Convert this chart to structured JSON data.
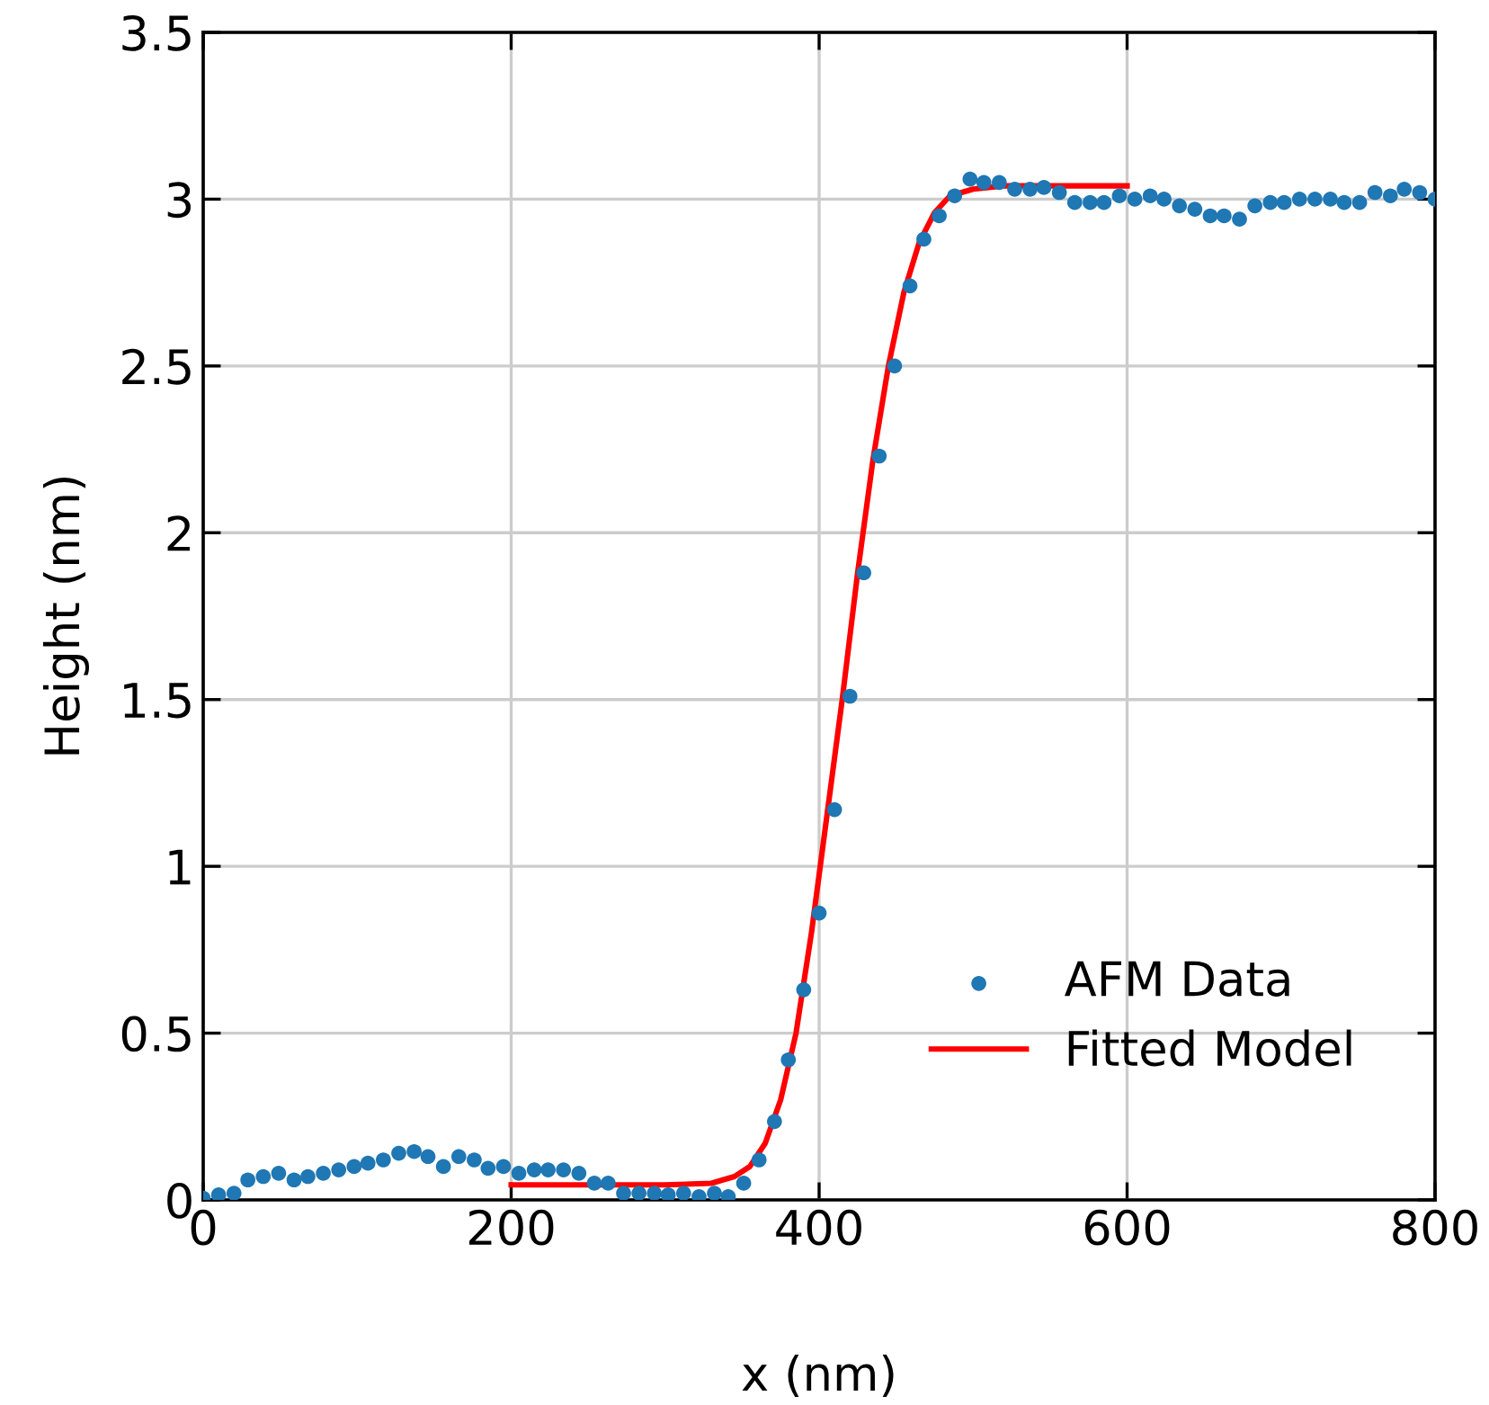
{
  "chart_data": {
    "type": "scatter",
    "xlabel": "x (nm)",
    "ylabel": "Height (nm)",
    "xlim": [
      0,
      800
    ],
    "ylim": [
      0,
      3.5
    ],
    "xticks": [
      0,
      200,
      400,
      600,
      800
    ],
    "yticks": [
      0,
      0.5,
      1,
      1.5,
      2,
      2.5,
      3,
      3.5
    ],
    "grid": true,
    "legend": "bottom right",
    "series": [
      {
        "name": "AFM Data",
        "marker": "circle",
        "color": "#1f77b4",
        "x": [
          0,
          10,
          20,
          29,
          39,
          49,
          59,
          68,
          78,
          88,
          98,
          107,
          117,
          127,
          137,
          146,
          156,
          166,
          176,
          185,
          195,
          205,
          215,
          224,
          234,
          244,
          254,
          263,
          273,
          283,
          293,
          302,
          312,
          322,
          332,
          341,
          351,
          361,
          371,
          380,
          390,
          400,
          410,
          420,
          429,
          439,
          449,
          459,
          468,
          478,
          488,
          498,
          507,
          517,
          527,
          537,
          546,
          556,
          566,
          576,
          585,
          595,
          605,
          615,
          624,
          634,
          644,
          654,
          663,
          673,
          683,
          693,
          702,
          712,
          722,
          732,
          741,
          751,
          761,
          771,
          780,
          790,
          800
        ],
        "values": [
          0.005,
          0.015,
          0.02,
          0.06,
          0.07,
          0.08,
          0.06,
          0.07,
          0.08,
          0.09,
          0.1,
          0.11,
          0.12,
          0.14,
          0.145,
          0.13,
          0.1,
          0.13,
          0.12,
          0.095,
          0.1,
          0.08,
          0.09,
          0.09,
          0.09,
          0.08,
          0.05,
          0.05,
          0.02,
          0.02,
          0.02,
          0.015,
          0.02,
          0.01,
          0.02,
          0.01,
          0.05,
          0.12,
          0.235,
          0.42,
          0.63,
          0.86,
          1.17,
          1.51,
          1.88,
          2.23,
          2.5,
          2.74,
          2.88,
          2.95,
          3.01,
          3.06,
          3.05,
          3.05,
          3.03,
          3.03,
          3.035,
          3.02,
          2.99,
          2.99,
          2.99,
          3.01,
          3.0,
          3.01,
          3.0,
          2.98,
          2.97,
          2.95,
          2.95,
          2.94,
          2.98,
          2.99,
          2.99,
          3.0,
          3.0,
          3.0,
          2.99,
          2.99,
          3.02,
          3.01,
          3.03,
          3.02,
          3.0
        ]
      },
      {
        "name": "Fitted Model",
        "type": "line",
        "marker": "none",
        "line_style": "solid",
        "color": "#ff0000",
        "x": [
          200,
          300,
          330,
          345,
          355,
          365,
          375,
          385,
          395,
          405,
          415,
          425,
          435,
          445,
          455,
          465,
          475,
          485,
          500,
          520,
          600
        ],
        "values": [
          0.045,
          0.045,
          0.05,
          0.07,
          0.1,
          0.17,
          0.3,
          0.5,
          0.8,
          1.15,
          1.5,
          1.88,
          2.22,
          2.5,
          2.72,
          2.87,
          2.96,
          3.01,
          3.03,
          3.04,
          3.04
        ]
      }
    ]
  }
}
